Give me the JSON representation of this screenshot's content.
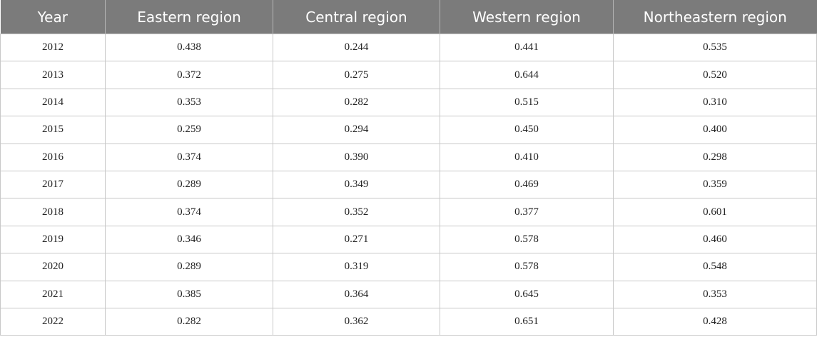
{
  "table": {
    "headers": [
      "Year",
      "Eastern region",
      "Central region",
      "Western region",
      "Northeastern region"
    ],
    "rows": [
      [
        "2012",
        "0.438",
        "0.244",
        "0.441",
        "0.535"
      ],
      [
        "2013",
        "0.372",
        "0.275",
        "0.644",
        "0.520"
      ],
      [
        "2014",
        "0.353",
        "0.282",
        "0.515",
        "0.310"
      ],
      [
        "2015",
        "0.259",
        "0.294",
        "0.450",
        "0.400"
      ],
      [
        "2016",
        "0.374",
        "0.390",
        "0.410",
        "0.298"
      ],
      [
        "2017",
        "0.289",
        "0.349",
        "0.469",
        "0.359"
      ],
      [
        "2018",
        "0.374",
        "0.352",
        "0.377",
        "0.601"
      ],
      [
        "2019",
        "0.346",
        "0.271",
        "0.578",
        "0.460"
      ],
      [
        "2020",
        "0.289",
        "0.319",
        "0.578",
        "0.548"
      ],
      [
        "2021",
        "0.385",
        "0.364",
        "0.645",
        "0.353"
      ],
      [
        "2022",
        "0.282",
        "0.362",
        "0.651",
        "0.428"
      ]
    ]
  },
  "colors": {
    "header_bg": "#7b7b7b",
    "header_text": "#ffffff",
    "grid": "#c8c8c8"
  }
}
